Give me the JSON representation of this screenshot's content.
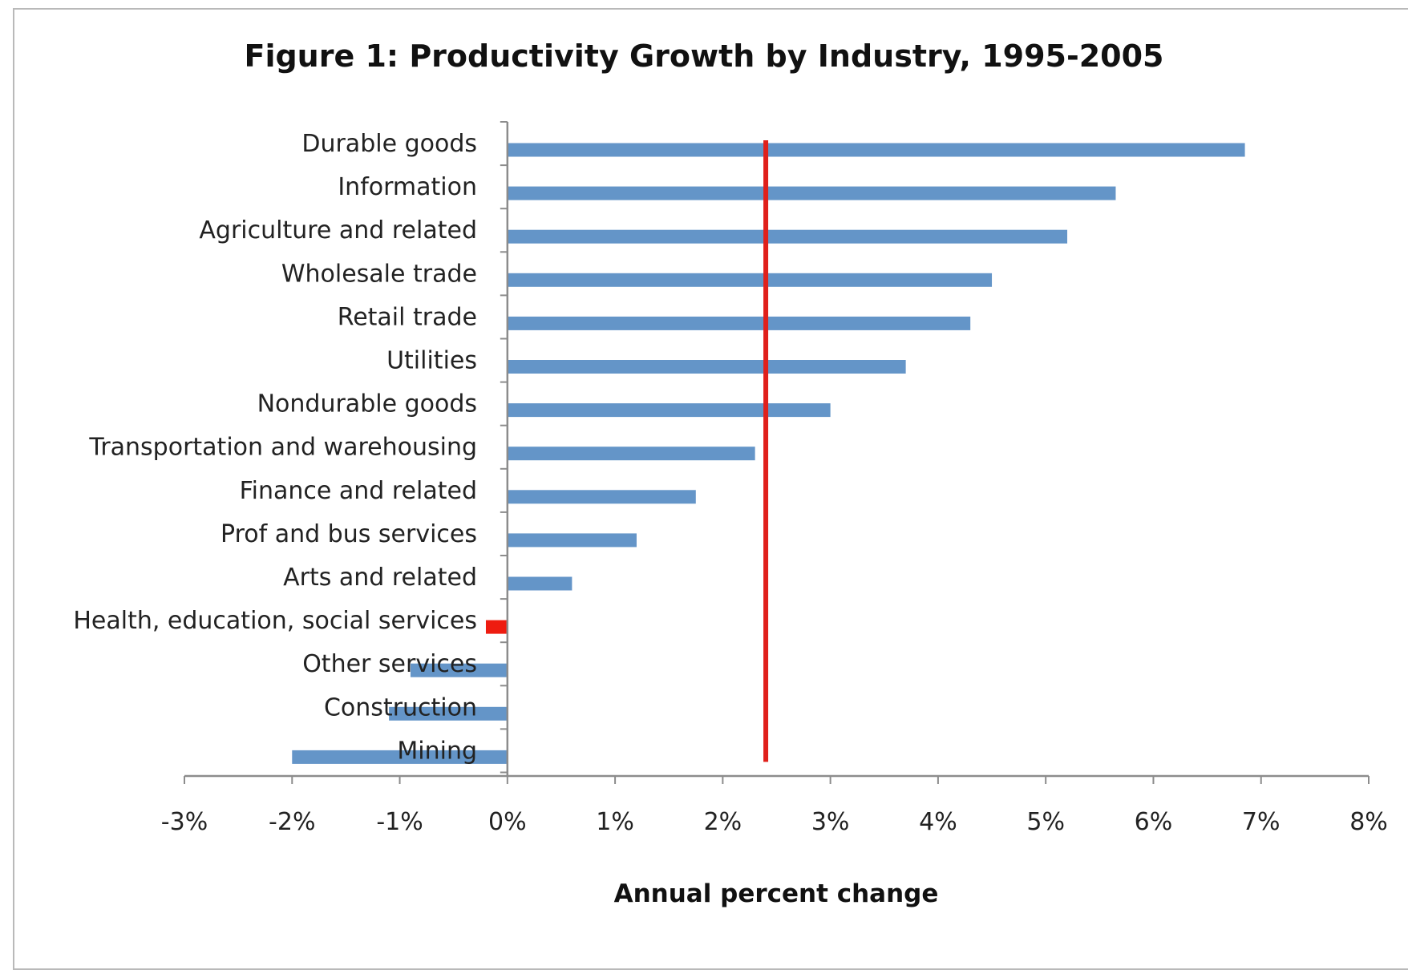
{
  "chart_data": {
    "type": "bar",
    "orientation": "horizontal",
    "title": "Figure 1: Productivity Growth by Industry, 1995-2005",
    "xlabel": "Annual percent change",
    "ylabel": "",
    "categories": [
      "Durable goods",
      "Information",
      "Agriculture and related",
      "Wholesale trade",
      "Retail trade",
      "Utilities",
      "Nondurable goods",
      "Transportation and warehousing",
      "Finance and related",
      "Prof and bus services",
      "Arts and related",
      "Health, education, social services",
      "Other services",
      "Construction",
      "Mining"
    ],
    "values": [
      6.85,
      5.65,
      5.2,
      4.5,
      4.3,
      3.7,
      3.0,
      2.3,
      1.75,
      1.2,
      0.6,
      -0.2,
      -0.9,
      -1.1,
      -2.0
    ],
    "bar_colors": [
      "#6495c8",
      "#6495c8",
      "#6495c8",
      "#6495c8",
      "#6495c8",
      "#6495c8",
      "#6495c8",
      "#6495c8",
      "#6495c8",
      "#6495c8",
      "#6495c8",
      "#ee1c10",
      "#6495c8",
      "#6495c8",
      "#6495c8"
    ],
    "reference_line": {
      "value": 2.4,
      "color": "#e0201b"
    },
    "xlim": [
      -3,
      8
    ],
    "xticks": [
      -3,
      -2,
      -1,
      0,
      1,
      2,
      3,
      4,
      5,
      6,
      7,
      8
    ],
    "xtick_labels": [
      "-3%",
      "-2%",
      "-1%",
      "0%",
      "1%",
      "2%",
      "3%",
      "4%",
      "5%",
      "6%",
      "7%",
      "8%"
    ],
    "grid": false,
    "legend": "none"
  }
}
